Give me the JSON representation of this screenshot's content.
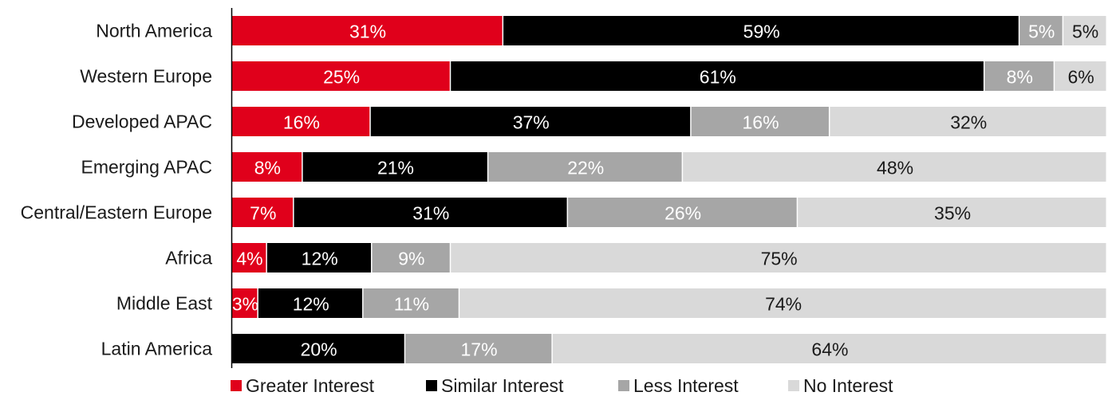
{
  "chart_data": {
    "type": "bar",
    "orientation": "horizontal",
    "stacked": true,
    "normalized": true,
    "title": "",
    "xlabel": "",
    "ylabel": "",
    "categories": [
      "North America",
      "Western Europe",
      "Developed APAC",
      "Emerging APAC",
      "Central/Eastern Europe",
      "Africa",
      "Middle East",
      "Latin America"
    ],
    "series": [
      {
        "name": "Greater Interest",
        "color": "#e0001b",
        "label_color": "#ffffff",
        "values": [
          31,
          25,
          16,
          8,
          7,
          4,
          3,
          0
        ],
        "labels": [
          "31%",
          "25%",
          "16%",
          "8%",
          "7%",
          "4%",
          "3%",
          ""
        ]
      },
      {
        "name": "Similar Interest",
        "color": "#000000",
        "label_color": "#ffffff",
        "values": [
          59,
          61,
          37,
          21,
          31,
          12,
          12,
          20
        ],
        "labels": [
          "59%",
          "61%",
          "37%",
          "21%",
          "31%",
          "12%",
          "12%",
          "20%"
        ]
      },
      {
        "name": "Less Interest",
        "color": "#a6a6a6",
        "label_color": "#ffffff",
        "values": [
          5,
          8,
          16,
          22,
          26,
          9,
          11,
          17
        ],
        "labels": [
          "5%",
          "8%",
          "16%",
          "22%",
          "26%",
          "9%",
          "11%",
          "17%"
        ]
      },
      {
        "name": "No Interest",
        "color": "#d9d9d9",
        "label_color": "#1a1a1a",
        "values": [
          5,
          6,
          32,
          48,
          35,
          75,
          74,
          64
        ],
        "labels": [
          "5%",
          "6%",
          "32%",
          "48%",
          "35%",
          "75%",
          "74%",
          "64%"
        ]
      }
    ],
    "legend": {
      "position": "bottom",
      "entries": [
        "Greater Interest",
        "Similar Interest",
        "Less Interest",
        "No Interest"
      ]
    },
    "grid": false
  }
}
